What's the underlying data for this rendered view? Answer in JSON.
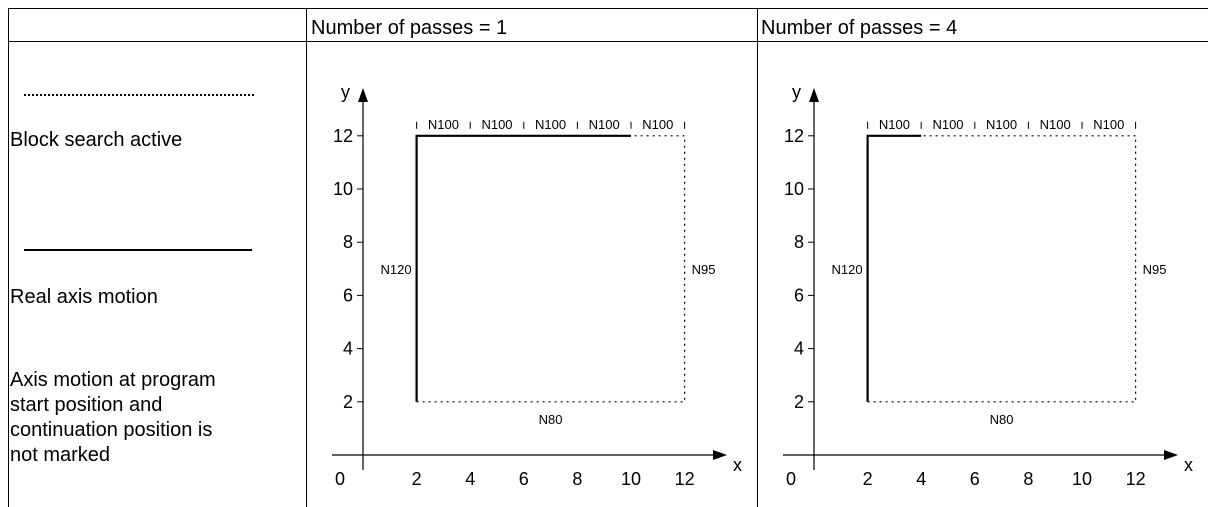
{
  "table": {
    "header_left": "",
    "header_1": "Number of passes = 1",
    "header_2": "Number of passes = 4"
  },
  "legend": {
    "dotted_label": "Block search active",
    "solid_label": "Real axis motion",
    "note_lines": [
      "Axis motion at program",
      "start position and",
      "continuation position is",
      "not marked"
    ]
  },
  "chart_data": [
    {
      "type": "line",
      "title": "Number of passes = 1",
      "xlabel": "x",
      "ylabel": "y",
      "origin_label": "0",
      "xlim": [
        0,
        13
      ],
      "ylim": [
        0,
        13
      ],
      "x_ticks": [
        2,
        4,
        6,
        8,
        10,
        12
      ],
      "y_ticks": [
        2,
        4,
        6,
        8,
        10,
        12
      ],
      "dotted_paths": [
        [
          [
            2,
            2
          ],
          [
            12,
            2
          ],
          [
            12,
            12
          ],
          [
            10,
            12
          ]
        ]
      ],
      "solid_paths": [
        [
          [
            10,
            12
          ],
          [
            2,
            12
          ],
          [
            2,
            2
          ]
        ]
      ],
      "segment_labels": [
        {
          "text": "N80",
          "x": 7,
          "y": 2,
          "pos": "below"
        },
        {
          "text": "N95",
          "x": 12,
          "y": 7,
          "pos": "right"
        },
        {
          "text": "N120",
          "x": 2,
          "y": 7,
          "pos": "left"
        },
        {
          "text": "N100",
          "x": 3,
          "y": 12,
          "pos": "above"
        },
        {
          "text": "N100",
          "x": 5,
          "y": 12,
          "pos": "above"
        },
        {
          "text": "N100",
          "x": 7,
          "y": 12,
          "pos": "above"
        },
        {
          "text": "N100",
          "x": 9,
          "y": 12,
          "pos": "above"
        },
        {
          "text": "N100",
          "x": 11,
          "y": 12,
          "pos": "above"
        }
      ],
      "segment_marks_x": [
        2,
        4,
        6,
        8,
        10,
        12
      ]
    },
    {
      "type": "line",
      "title": "Number of passes = 4",
      "xlabel": "x",
      "ylabel": "y",
      "origin_label": "0",
      "xlim": [
        0,
        13
      ],
      "ylim": [
        0,
        13
      ],
      "x_ticks": [
        2,
        4,
        6,
        8,
        10,
        12
      ],
      "y_ticks": [
        2,
        4,
        6,
        8,
        10,
        12
      ],
      "dotted_paths": [
        [
          [
            2,
            2
          ],
          [
            12,
            2
          ],
          [
            12,
            12
          ],
          [
            4,
            12
          ]
        ]
      ],
      "solid_paths": [
        [
          [
            4,
            12
          ],
          [
            2,
            12
          ],
          [
            2,
            2
          ]
        ]
      ],
      "segment_labels": [
        {
          "text": "N80",
          "x": 7,
          "y": 2,
          "pos": "below"
        },
        {
          "text": "N95",
          "x": 12,
          "y": 7,
          "pos": "right"
        },
        {
          "text": "N120",
          "x": 2,
          "y": 7,
          "pos": "left"
        },
        {
          "text": "N100",
          "x": 3,
          "y": 12,
          "pos": "above"
        },
        {
          "text": "N100",
          "x": 5,
          "y": 12,
          "pos": "above"
        },
        {
          "text": "N100",
          "x": 7,
          "y": 12,
          "pos": "above"
        },
        {
          "text": "N100",
          "x": 9,
          "y": 12,
          "pos": "above"
        },
        {
          "text": "N100",
          "x": 11,
          "y": 12,
          "pos": "above"
        }
      ],
      "segment_marks_x": [
        2,
        4,
        6,
        8,
        10,
        12
      ]
    }
  ]
}
